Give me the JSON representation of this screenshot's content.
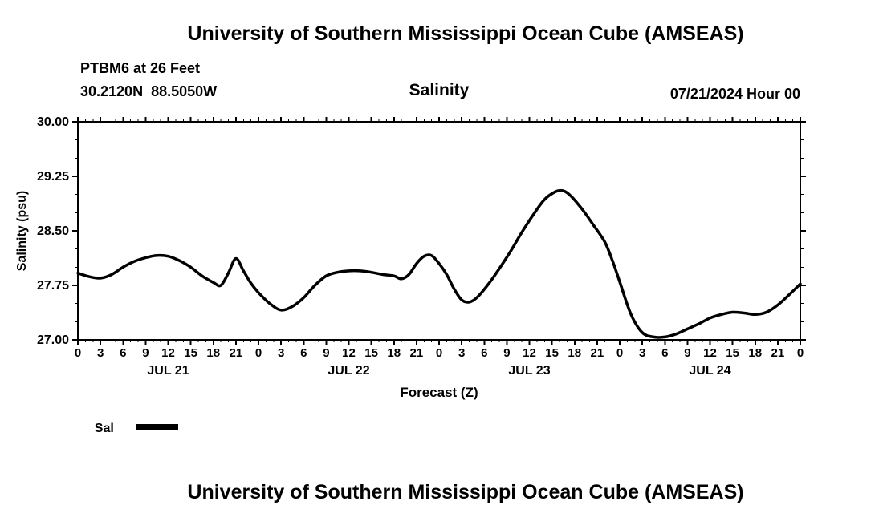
{
  "page": {
    "top_title": "University of Southern Mississippi Ocean Cube (AMSEAS)",
    "bottom_title": "University of Southern Mississippi Ocean Cube (AMSEAS)"
  },
  "header": {
    "station": "PTBM6 at 26 Feet",
    "coordinates": "30.2120N  88.5050W",
    "plot_title": "Salinity",
    "datetime": "07/21/2024 Hour 00"
  },
  "legend": {
    "label": "Sal",
    "line_color": "#000000",
    "position": "bottom-left"
  },
  "chart_data": {
    "type": "line",
    "title": "Salinity",
    "xlabel": "Forecast (Z)",
    "ylabel": "Salinity (psu)",
    "grid": false,
    "line_color": "#000000",
    "ylim": [
      27.0,
      30.0
    ],
    "y_ticks": [
      {
        "value": 27.0,
        "label": "27.00"
      },
      {
        "value": 27.75,
        "label": "27.75"
      },
      {
        "value": 28.5,
        "label": "28.50"
      },
      {
        "value": 29.25,
        "label": "29.25"
      },
      {
        "value": 30.0,
        "label": "30.00"
      }
    ],
    "y_minor_step": 0.25,
    "xlim_hours": [
      0,
      96
    ],
    "x_minor_step_hours": 1,
    "x_ticks": [
      [
        0,
        "0"
      ],
      [
        3,
        "3"
      ],
      [
        6,
        "6"
      ],
      [
        9,
        "9"
      ],
      [
        12,
        "12"
      ],
      [
        15,
        "15"
      ],
      [
        18,
        "18"
      ],
      [
        21,
        "21"
      ],
      [
        24,
        "0"
      ],
      [
        27,
        "3"
      ],
      [
        30,
        "6"
      ],
      [
        33,
        "9"
      ],
      [
        36,
        "12"
      ],
      [
        39,
        "15"
      ],
      [
        42,
        "18"
      ],
      [
        45,
        "21"
      ],
      [
        48,
        "0"
      ],
      [
        51,
        "3"
      ],
      [
        54,
        "6"
      ],
      [
        57,
        "9"
      ],
      [
        60,
        "12"
      ],
      [
        63,
        "15"
      ],
      [
        66,
        "18"
      ],
      [
        69,
        "21"
      ],
      [
        72,
        "0"
      ],
      [
        75,
        "3"
      ],
      [
        78,
        "6"
      ],
      [
        81,
        "9"
      ],
      [
        84,
        "12"
      ],
      [
        87,
        "15"
      ],
      [
        90,
        "18"
      ],
      [
        93,
        "21"
      ],
      [
        96,
        "0"
      ]
    ],
    "day_labels": [
      {
        "label": "JUL 21",
        "center_hour": 12
      },
      {
        "label": "JUL 22",
        "center_hour": 36
      },
      {
        "label": "JUL 23",
        "center_hour": 60
      },
      {
        "label": "JUL 24",
        "center_hour": 84
      }
    ],
    "series": [
      {
        "name": "Sal",
        "color": "#000000",
        "points": [
          [
            0,
            27.92
          ],
          [
            1.5,
            27.87
          ],
          [
            3,
            27.85
          ],
          [
            4.5,
            27.9
          ],
          [
            6,
            28.0
          ],
          [
            7.5,
            28.08
          ],
          [
            9,
            28.13
          ],
          [
            10.5,
            28.16
          ],
          [
            12,
            28.15
          ],
          [
            13.5,
            28.09
          ],
          [
            15,
            28.0
          ],
          [
            16.5,
            27.88
          ],
          [
            18,
            27.79
          ],
          [
            19,
            27.75
          ],
          [
            20,
            27.92
          ],
          [
            21,
            28.12
          ],
          [
            22,
            27.95
          ],
          [
            23,
            27.78
          ],
          [
            24,
            27.65
          ],
          [
            25.5,
            27.5
          ],
          [
            27,
            27.41
          ],
          [
            28.5,
            27.46
          ],
          [
            30,
            27.58
          ],
          [
            31.5,
            27.75
          ],
          [
            33,
            27.88
          ],
          [
            34.5,
            27.93
          ],
          [
            36,
            27.95
          ],
          [
            37.5,
            27.95
          ],
          [
            39,
            27.93
          ],
          [
            40.5,
            27.9
          ],
          [
            42,
            27.88
          ],
          [
            43,
            27.84
          ],
          [
            44,
            27.9
          ],
          [
            45,
            28.05
          ],
          [
            46,
            28.15
          ],
          [
            47,
            28.16
          ],
          [
            48,
            28.05
          ],
          [
            49,
            27.9
          ],
          [
            50,
            27.7
          ],
          [
            51,
            27.55
          ],
          [
            52,
            27.52
          ],
          [
            53,
            27.58
          ],
          [
            54.5,
            27.76
          ],
          [
            56,
            27.98
          ],
          [
            57.5,
            28.22
          ],
          [
            59,
            28.48
          ],
          [
            60.5,
            28.72
          ],
          [
            62,
            28.93
          ],
          [
            63.5,
            29.04
          ],
          [
            64.5,
            29.05
          ],
          [
            65.5,
            28.98
          ],
          [
            67,
            28.8
          ],
          [
            68.5,
            28.58
          ],
          [
            70,
            28.35
          ],
          [
            71,
            28.1
          ],
          [
            72,
            27.8
          ],
          [
            73.5,
            27.35
          ],
          [
            75,
            27.1
          ],
          [
            76.5,
            27.04
          ],
          [
            78,
            27.04
          ],
          [
            79.5,
            27.08
          ],
          [
            81,
            27.15
          ],
          [
            82.5,
            27.22
          ],
          [
            84,
            27.3
          ],
          [
            85.5,
            27.35
          ],
          [
            87,
            27.38
          ],
          [
            88.5,
            27.37
          ],
          [
            90,
            27.35
          ],
          [
            91.5,
            27.38
          ],
          [
            93,
            27.48
          ],
          [
            94.5,
            27.62
          ],
          [
            96,
            27.77
          ]
        ]
      }
    ]
  }
}
